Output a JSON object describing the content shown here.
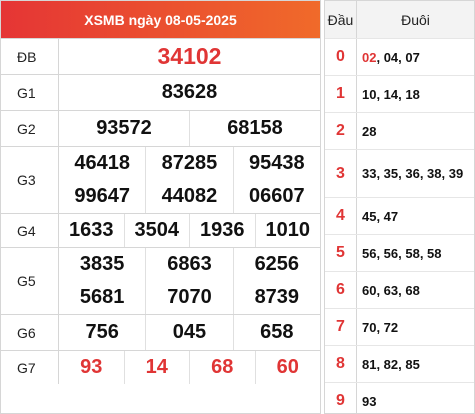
{
  "header": {
    "title": "XSMB ngày 08-05-2025"
  },
  "prizes": {
    "db": {
      "label": "ĐB",
      "numbers": [
        "34102"
      ]
    },
    "g1": {
      "label": "G1",
      "numbers": [
        "83628"
      ]
    },
    "g2": {
      "label": "G2",
      "numbers": [
        "93572",
        "68158"
      ]
    },
    "g3": {
      "label": "G3",
      "numbers": [
        "46418",
        "87285",
        "95438",
        "99647",
        "44082",
        "06607"
      ]
    },
    "g4": {
      "label": "G4",
      "numbers": [
        "1633",
        "3504",
        "1936",
        "1010"
      ]
    },
    "g5": {
      "label": "G5",
      "numbers": [
        "3835",
        "6863",
        "6256",
        "5681",
        "7070",
        "8739"
      ]
    },
    "g6": {
      "label": "G6",
      "numbers": [
        "756",
        "045",
        "658"
      ]
    },
    "g7": {
      "label": "G7",
      "numbers": [
        "93",
        "14",
        "68",
        "60"
      ]
    }
  },
  "loto": {
    "head_col": "Đầu",
    "tail_col": "Đuôi",
    "rows": [
      {
        "dau": "0",
        "first": "02",
        "rest": ", 04, 07"
      },
      {
        "dau": "1",
        "first": "",
        "rest": "10, 14, 18"
      },
      {
        "dau": "2",
        "first": "",
        "rest": "28"
      },
      {
        "dau": "3",
        "first": "",
        "rest": "33, 35, 36, 38, 39"
      },
      {
        "dau": "4",
        "first": "",
        "rest": "45, 47"
      },
      {
        "dau": "5",
        "first": "",
        "rest": "56, 56, 58, 58"
      },
      {
        "dau": "6",
        "first": "",
        "rest": "60, 63, 68"
      },
      {
        "dau": "7",
        "first": "",
        "rest": "70, 72"
      },
      {
        "dau": "8",
        "first": "",
        "rest": "81, 82, 85"
      },
      {
        "dau": "9",
        "first": "",
        "rest": "93"
      }
    ]
  },
  "colors": {
    "accent_red": "#e03535",
    "header_gradient_start": "#e53535",
    "header_gradient_end": "#f06a2a"
  }
}
